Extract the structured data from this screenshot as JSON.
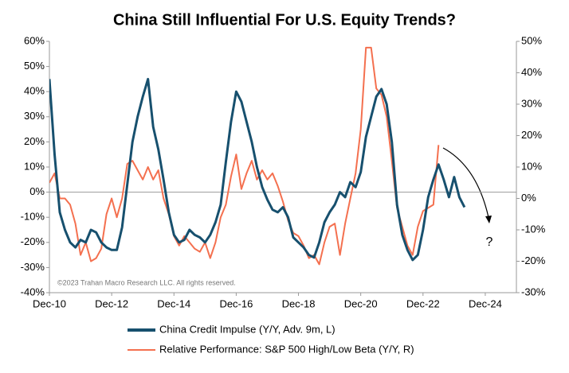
{
  "chart_data": {
    "type": "line",
    "title": "China Still Influential For U.S. Equity Trends?",
    "annotations": [
      "©2023 Trahan Macro Research LLC. All rights reserved.",
      "?"
    ],
    "categories": [
      "Dec-10",
      null,
      null,
      null,
      null,
      null,
      null,
      null,
      null,
      null,
      null,
      null,
      "Dec-12",
      null,
      null,
      null,
      null,
      null,
      null,
      null,
      null,
      null,
      null,
      null,
      "Dec-14",
      null,
      null,
      null,
      null,
      null,
      null,
      null,
      null,
      null,
      null,
      null,
      "Dec-16",
      null,
      null,
      null,
      null,
      null,
      null,
      null,
      null,
      null,
      null,
      null,
      "Dec-18",
      null,
      null,
      null,
      null,
      null,
      null,
      null,
      null,
      null,
      null,
      null,
      "Dec-20",
      null,
      null,
      null,
      null,
      null,
      null,
      null,
      null,
      null,
      null,
      null,
      "Dec-22",
      null,
      null,
      null,
      null,
      null,
      null,
      null,
      null,
      null,
      null,
      null,
      "Dec-24",
      null,
      null,
      null,
      null,
      null,
      null
    ],
    "ylim": [
      -40,
      60
    ],
    "yticks": [
      {
        "value": -40,
        "label": "-40%"
      },
      {
        "value": -30,
        "label": "-30%"
      },
      {
        "value": -20,
        "label": "-20%"
      },
      {
        "value": -10,
        "label": "-10%"
      },
      {
        "value": 0,
        "label": "0%"
      },
      {
        "value": 10,
        "label": "10%"
      },
      {
        "value": 20,
        "label": "20%"
      },
      {
        "value": 30,
        "label": "30%"
      },
      {
        "value": 40,
        "label": "40%"
      },
      {
        "value": 50,
        "label": "50%"
      },
      {
        "value": 60,
        "label": "60%"
      }
    ],
    "y2lim": [
      -30,
      50
    ],
    "y2ticks": [
      {
        "value": -30,
        "label": "-30%"
      },
      {
        "value": -20,
        "label": "-20%"
      },
      {
        "value": -10,
        "label": "-10%"
      },
      {
        "value": 0,
        "label": "0%"
      },
      {
        "value": 10,
        "label": "10%"
      },
      {
        "value": 20,
        "label": "20%"
      },
      {
        "value": 30,
        "label": "30%"
      },
      {
        "value": 40,
        "label": "40%"
      },
      {
        "value": 50,
        "label": "50%"
      }
    ],
    "legend": "bottom",
    "series": [
      {
        "name": "China Credit Impulse (Y/Y, Adv. 9m, L)",
        "color": "#17506e",
        "axis": "y",
        "values": [
          45,
          15,
          -8,
          -15,
          -20,
          -22,
          -19,
          -20,
          -15,
          -16,
          -20,
          -22,
          -23,
          -23,
          -14,
          3,
          20,
          30,
          38,
          45,
          26,
          17,
          5,
          -8,
          -17,
          -20,
          -19,
          -15,
          -17,
          -18,
          -20,
          -17,
          -12,
          -5,
          12,
          28,
          40,
          36,
          28,
          20,
          10,
          2,
          -3,
          -7,
          -8,
          -6,
          -10,
          -18,
          -20,
          -22,
          -25,
          -26,
          -20,
          -12,
          -8,
          -5,
          0,
          -2,
          4,
          2,
          8,
          22,
          30,
          38,
          41,
          35,
          20,
          -5,
          -17,
          -23,
          -27,
          -25,
          -15,
          -2,
          5,
          11,
          5,
          -2,
          6,
          -2,
          -6,
          null,
          null,
          null,
          null,
          null,
          null,
          null,
          null,
          null,
          null
        ]
      },
      {
        "name": "Relative Performance: S&P 500 High/Low Beta (Y/Y, R)",
        "color": "#f4704f",
        "axis": "y2",
        "values": [
          5,
          8,
          0,
          0,
          -2,
          -8,
          -18,
          -14,
          -20,
          -19,
          -16,
          -5,
          0,
          -6,
          0,
          11,
          12,
          9,
          6,
          10,
          6,
          9,
          0,
          -5,
          -12,
          -15,
          -12,
          -14,
          -16,
          -17,
          -14,
          -19,
          -14,
          -6,
          -2,
          7,
          14,
          3,
          8,
          12,
          6,
          9,
          6,
          8,
          4,
          -1,
          -7,
          -11,
          -12,
          -15,
          -19,
          -18,
          -21,
          -14,
          -9,
          -8,
          -18,
          -8,
          0,
          8,
          22,
          48,
          48,
          35,
          33,
          26,
          12,
          -3,
          -9,
          -15,
          -18,
          -9,
          -4,
          -3,
          -2,
          17,
          null,
          null,
          null,
          null,
          null,
          null,
          null,
          null,
          null,
          null,
          null,
          null,
          null,
          null,
          null
        ]
      }
    ]
  }
}
